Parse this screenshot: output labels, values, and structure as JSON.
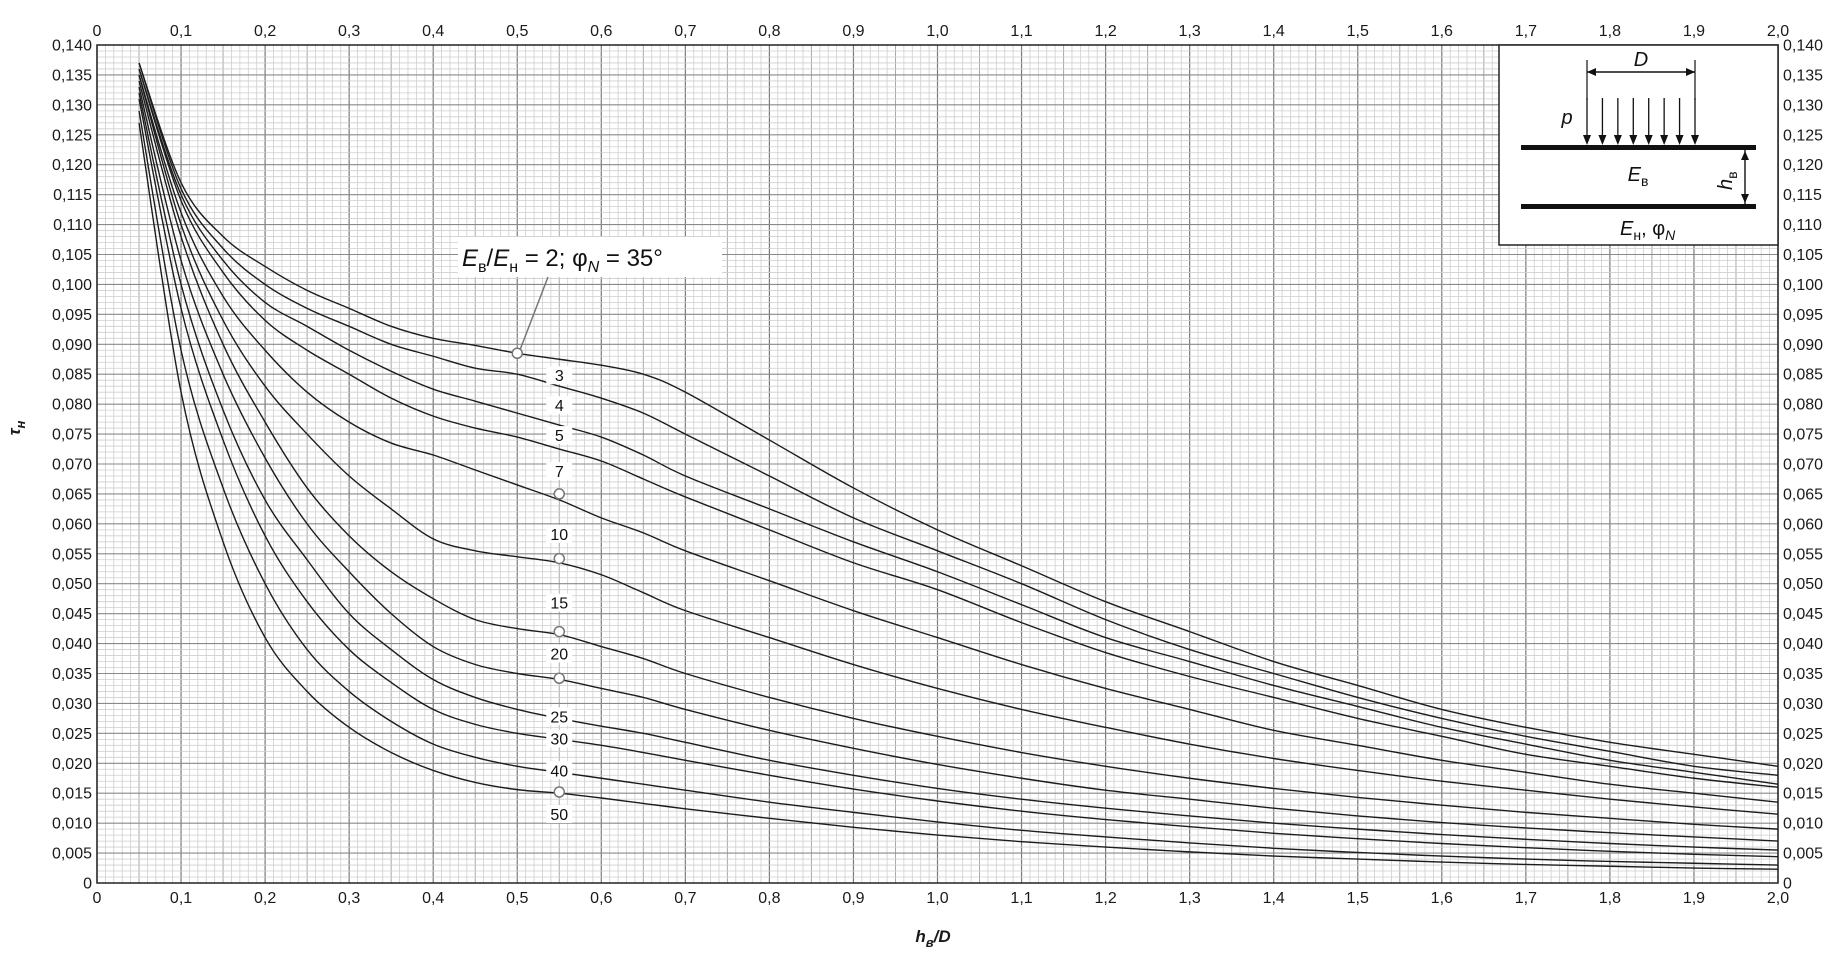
{
  "chart_data": {
    "type": "line",
    "title": "",
    "xlabel": "h",
    "xlabel_sub": "в",
    "xlabel_tail": "/D",
    "ylabel": "τ",
    "ylabel_sub": "н",
    "xlim": [
      0,
      2.0
    ],
    "ylim": [
      0,
      0.14
    ],
    "x_ticks": [
      0,
      0.1,
      0.2,
      0.3,
      0.4,
      0.5,
      0.6,
      0.7,
      0.8,
      0.9,
      1.0,
      1.1,
      1.2,
      1.3,
      1.4,
      1.5,
      1.6,
      1.7,
      1.8,
      1.9,
      2.0
    ],
    "x_tick_labels": [
      "0",
      "0,1",
      "0,2",
      "0,3",
      "0,4",
      "0,5",
      "0,6",
      "0,7",
      "0,8",
      "0,9",
      "1,0",
      "1,1",
      "1,2",
      "1,3",
      "1,4",
      "1,5",
      "1,6",
      "1,7",
      "1,8",
      "1,9",
      "2,0"
    ],
    "y_ticks": [
      0,
      0.005,
      0.01,
      0.015,
      0.02,
      0.025,
      0.03,
      0.035,
      0.04,
      0.045,
      0.05,
      0.055,
      0.06,
      0.065,
      0.07,
      0.075,
      0.08,
      0.085,
      0.09,
      0.095,
      0.1,
      0.105,
      0.11,
      0.115,
      0.12,
      0.125,
      0.13,
      0.135,
      0.14
    ],
    "y_tick_labels": [
      "0",
      "0,005",
      "0,010",
      "0,015",
      "0,020",
      "0,025",
      "0,030",
      "0,035",
      "0,040",
      "0,045",
      "0,050",
      "0,055",
      "0,060",
      "0,065",
      "0,070",
      "0,075",
      "0,080",
      "0,085",
      "0,090",
      "0,095",
      "0,100",
      "0,105",
      "0,110",
      "0,115",
      "0,120",
      "0,125",
      "0,130",
      "0,135",
      "0,140"
    ],
    "grid": true,
    "x": [
      0.05,
      0.1,
      0.15,
      0.2,
      0.25,
      0.3,
      0.35,
      0.4,
      0.45,
      0.5,
      0.55,
      0.6,
      0.65,
      0.7,
      0.8,
      0.9,
      1.0,
      1.1,
      1.2,
      1.3,
      1.4,
      1.5,
      1.6,
      1.7,
      1.8,
      1.9,
      2.0
    ],
    "series": [
      {
        "name": "2",
        "values": [
          0.137,
          0.117,
          0.108,
          0.103,
          0.099,
          0.096,
          0.093,
          0.091,
          0.0898,
          0.0885,
          0.0875,
          0.0865,
          0.085,
          0.082,
          0.074,
          0.066,
          0.059,
          0.053,
          0.047,
          0.042,
          0.037,
          0.033,
          0.029,
          0.026,
          0.0235,
          0.0215,
          0.0195
        ]
      },
      {
        "name": "3",
        "values": [
          0.137,
          0.116,
          0.106,
          0.1,
          0.096,
          0.093,
          0.09,
          0.088,
          0.086,
          0.085,
          0.083,
          0.081,
          0.0785,
          0.075,
          0.068,
          0.061,
          0.0555,
          0.05,
          0.044,
          0.039,
          0.035,
          0.031,
          0.0275,
          0.0245,
          0.022,
          0.0195,
          0.018
        ]
      },
      {
        "name": "4",
        "values": [
          0.136,
          0.115,
          0.104,
          0.097,
          0.093,
          0.089,
          0.0855,
          0.0825,
          0.0805,
          0.0785,
          0.0765,
          0.0745,
          0.0715,
          0.068,
          0.0625,
          0.057,
          0.052,
          0.0465,
          0.041,
          0.037,
          0.033,
          0.0295,
          0.026,
          0.0232,
          0.0205,
          0.0185,
          0.0165
        ]
      },
      {
        "name": "5",
        "values": [
          0.136,
          0.114,
          0.102,
          0.094,
          0.089,
          0.085,
          0.081,
          0.078,
          0.076,
          0.0745,
          0.0725,
          0.0705,
          0.0675,
          0.0645,
          0.059,
          0.0535,
          0.049,
          0.0435,
          0.0385,
          0.0345,
          0.031,
          0.0275,
          0.0245,
          0.0215,
          0.0195,
          0.0175,
          0.016
        ]
      },
      {
        "name": "7",
        "values": [
          0.135,
          0.112,
          0.098,
          0.089,
          0.082,
          0.077,
          0.0735,
          0.0715,
          0.069,
          0.0665,
          0.064,
          0.061,
          0.0585,
          0.0555,
          0.0505,
          0.0455,
          0.041,
          0.0365,
          0.0325,
          0.029,
          0.0255,
          0.023,
          0.0205,
          0.0185,
          0.0165,
          0.015,
          0.0135
        ]
      },
      {
        "name": "10",
        "values": [
          0.135,
          0.11,
          0.094,
          0.083,
          0.075,
          0.068,
          0.0625,
          0.0575,
          0.0555,
          0.0545,
          0.0535,
          0.0515,
          0.0485,
          0.0455,
          0.041,
          0.0365,
          0.0325,
          0.029,
          0.026,
          0.0232,
          0.0208,
          0.0188,
          0.017,
          0.0155,
          0.014,
          0.0127,
          0.0115
        ]
      },
      {
        "name": "15",
        "values": [
          0.134,
          0.108,
          0.09,
          0.077,
          0.066,
          0.058,
          0.052,
          0.0475,
          0.044,
          0.0425,
          0.0415,
          0.0395,
          0.0375,
          0.035,
          0.031,
          0.0275,
          0.0245,
          0.0218,
          0.0195,
          0.0175,
          0.0158,
          0.0143,
          0.013,
          0.0118,
          0.0108,
          0.0098,
          0.009
        ]
      },
      {
        "name": "20",
        "values": [
          0.133,
          0.104,
          0.085,
          0.071,
          0.06,
          0.052,
          0.045,
          0.0395,
          0.0365,
          0.035,
          0.034,
          0.0325,
          0.031,
          0.029,
          0.0255,
          0.0225,
          0.0198,
          0.0175,
          0.0155,
          0.014,
          0.0125,
          0.0112,
          0.0101,
          0.0092,
          0.0084,
          0.0077,
          0.007
        ]
      },
      {
        "name": "25",
        "values": [
          0.132,
          0.1,
          0.079,
          0.064,
          0.054,
          0.045,
          0.039,
          0.034,
          0.031,
          0.029,
          0.0275,
          0.0262,
          0.025,
          0.0235,
          0.0205,
          0.018,
          0.0158,
          0.014,
          0.0125,
          0.0112,
          0.01,
          0.009,
          0.0081,
          0.0073,
          0.0066,
          0.006,
          0.0055
        ]
      },
      {
        "name": "30",
        "values": [
          0.131,
          0.096,
          0.074,
          0.058,
          0.047,
          0.039,
          0.0335,
          0.029,
          0.0265,
          0.025,
          0.024,
          0.023,
          0.0218,
          0.0205,
          0.018,
          0.0157,
          0.0137,
          0.012,
          0.0106,
          0.0094,
          0.0083,
          0.0074,
          0.0066,
          0.0059,
          0.0053,
          0.0048,
          0.0044
        ]
      },
      {
        "name": "40",
        "values": [
          0.129,
          0.089,
          0.066,
          0.05,
          0.039,
          0.032,
          0.027,
          0.0232,
          0.021,
          0.0195,
          0.0185,
          0.0175,
          0.0165,
          0.0155,
          0.0135,
          0.0118,
          0.0102,
          0.0088,
          0.0077,
          0.0067,
          0.0058,
          0.0051,
          0.0045,
          0.004,
          0.0036,
          0.0033,
          0.003
        ]
      },
      {
        "name": "50",
        "values": [
          0.127,
          0.082,
          0.057,
          0.041,
          0.032,
          0.026,
          0.0218,
          0.0188,
          0.0168,
          0.0156,
          0.015,
          0.0142,
          0.0133,
          0.0124,
          0.0108,
          0.0093,
          0.008,
          0.0069,
          0.006,
          0.0052,
          0.0045,
          0.004,
          0.0035,
          0.0031,
          0.0028,
          0.0025,
          0.0023
        ]
      }
    ],
    "curve_labels": [
      {
        "text": "3",
        "x": 0.55,
        "y": 0.0845
      },
      {
        "text": "4",
        "x": 0.55,
        "y": 0.0795
      },
      {
        "text": "5",
        "x": 0.55,
        "y": 0.0745
      },
      {
        "text": "7",
        "x": 0.55,
        "y": 0.0685
      },
      {
        "text": "10",
        "x": 0.55,
        "y": 0.058
      },
      {
        "text": "15",
        "x": 0.55,
        "y": 0.0465
      },
      {
        "text": "20",
        "x": 0.55,
        "y": 0.038
      },
      {
        "text": "25",
        "x": 0.55,
        "y": 0.0275
      },
      {
        "text": "30",
        "x": 0.55,
        "y": 0.0238
      },
      {
        "text": "40",
        "x": 0.55,
        "y": 0.0185
      },
      {
        "text": "50",
        "x": 0.55,
        "y": 0.0112
      }
    ],
    "markers": [
      {
        "x": 0.5,
        "y": 0.0885
      },
      {
        "x": 0.55,
        "y": 0.065
      },
      {
        "x": 0.55,
        "y": 0.0542
      },
      {
        "x": 0.55,
        "y": 0.042
      },
      {
        "x": 0.55,
        "y": 0.0342
      },
      {
        "x": 0.55,
        "y": 0.0152
      }
    ],
    "annotation": {
      "parts": [
        {
          "t": "E",
          "i": true
        },
        {
          "t": "в",
          "sub": true
        },
        {
          "t": "/",
          "i": false
        },
        {
          "t": "E",
          "i": true
        },
        {
          "t": "н",
          "sub": true
        },
        {
          "t": " = 2; φ",
          "i": false
        },
        {
          "t": "N",
          "i": true,
          "sub": true
        },
        {
          "t": " = 35°",
          "i": false
        }
      ],
      "target": {
        "x": 0.5,
        "y": 0.0885
      }
    },
    "inset": {
      "D": "D",
      "p": "p",
      "h_sym": "h",
      "h_sub": "в",
      "E_upper": "E",
      "E_upper_sub": "в",
      "E_lower": "E",
      "E_lower_sub": "н",
      "E_lower_tail": ", φ",
      "phi_sub": "N"
    }
  }
}
